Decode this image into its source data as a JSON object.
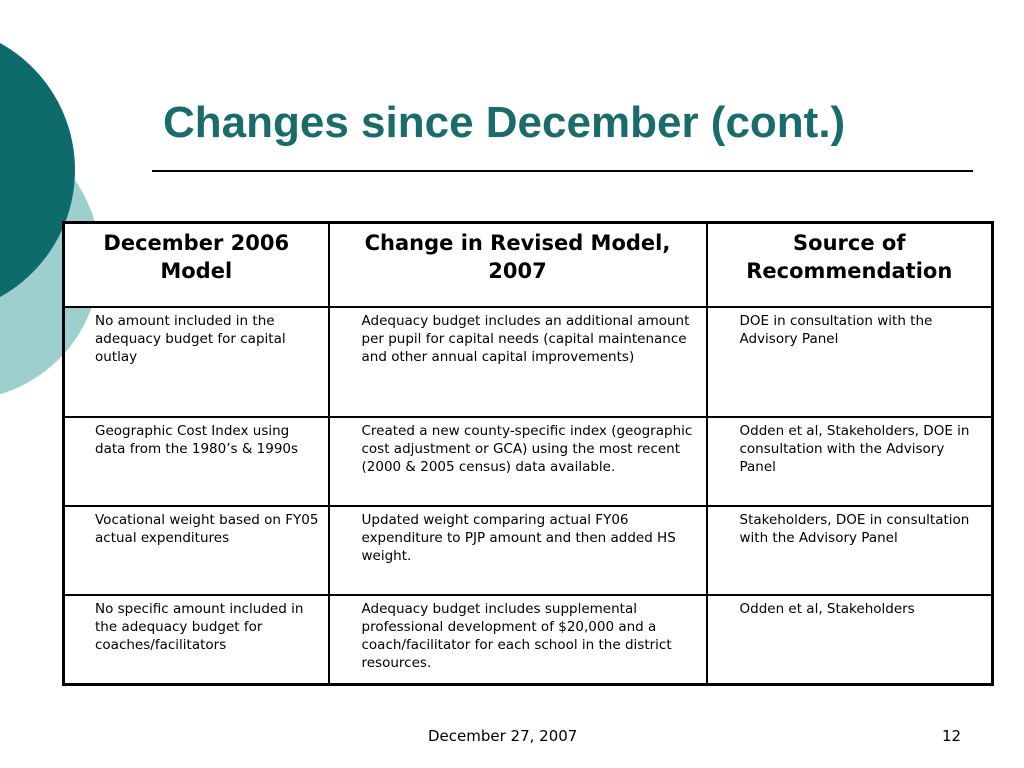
{
  "slide": {
    "title": "Changes since December (cont.)",
    "table": {
      "headers": [
        "December 2006 Model",
        "Change in Revised Model, 2007",
        "Source of Recommendation"
      ],
      "rows": [
        {
          "december_2006_model": "No amount included in the adequacy budget for capital outlay",
          "change_revised_model": "Adequacy budget includes an additional amount per pupil for capital needs (capital maintenance and other annual capital improvements)",
          "source": "DOE in consultation with the Advisory Panel"
        },
        {
          "december_2006_model": "Geographic Cost Index using data from the 1980’s & 1990s",
          "change_revised_model": "Created a new county-specific index (geographic cost adjustment or GCA) using the most recent (2000 & 2005 census) data available.",
          "source": "Odden et al, Stakeholders, DOE in consultation with the Advisory Panel"
        },
        {
          "december_2006_model": "Vocational weight based on FY05 actual expenditures",
          "change_revised_model": "Updated weight comparing actual FY06 expenditure to PJP amount and then added HS weight.",
          "source": "Stakeholders, DOE in consultation with the Advisory Panel"
        },
        {
          "december_2006_model": "No specific amount included in the adequacy budget for coaches/facilitators",
          "change_revised_model": "Adequacy budget includes supplemental professional development of $20,000 and a coach/facilitator for each school in the district resources.",
          "source": "Odden et al, Stakeholders"
        }
      ]
    },
    "footer": {
      "date": "December 27, 2007",
      "page_number": "12"
    },
    "colors": {
      "title": "#1a6b6b",
      "deco_dark": "#0e6b6b",
      "deco_light": "#9ecfcf"
    }
  }
}
